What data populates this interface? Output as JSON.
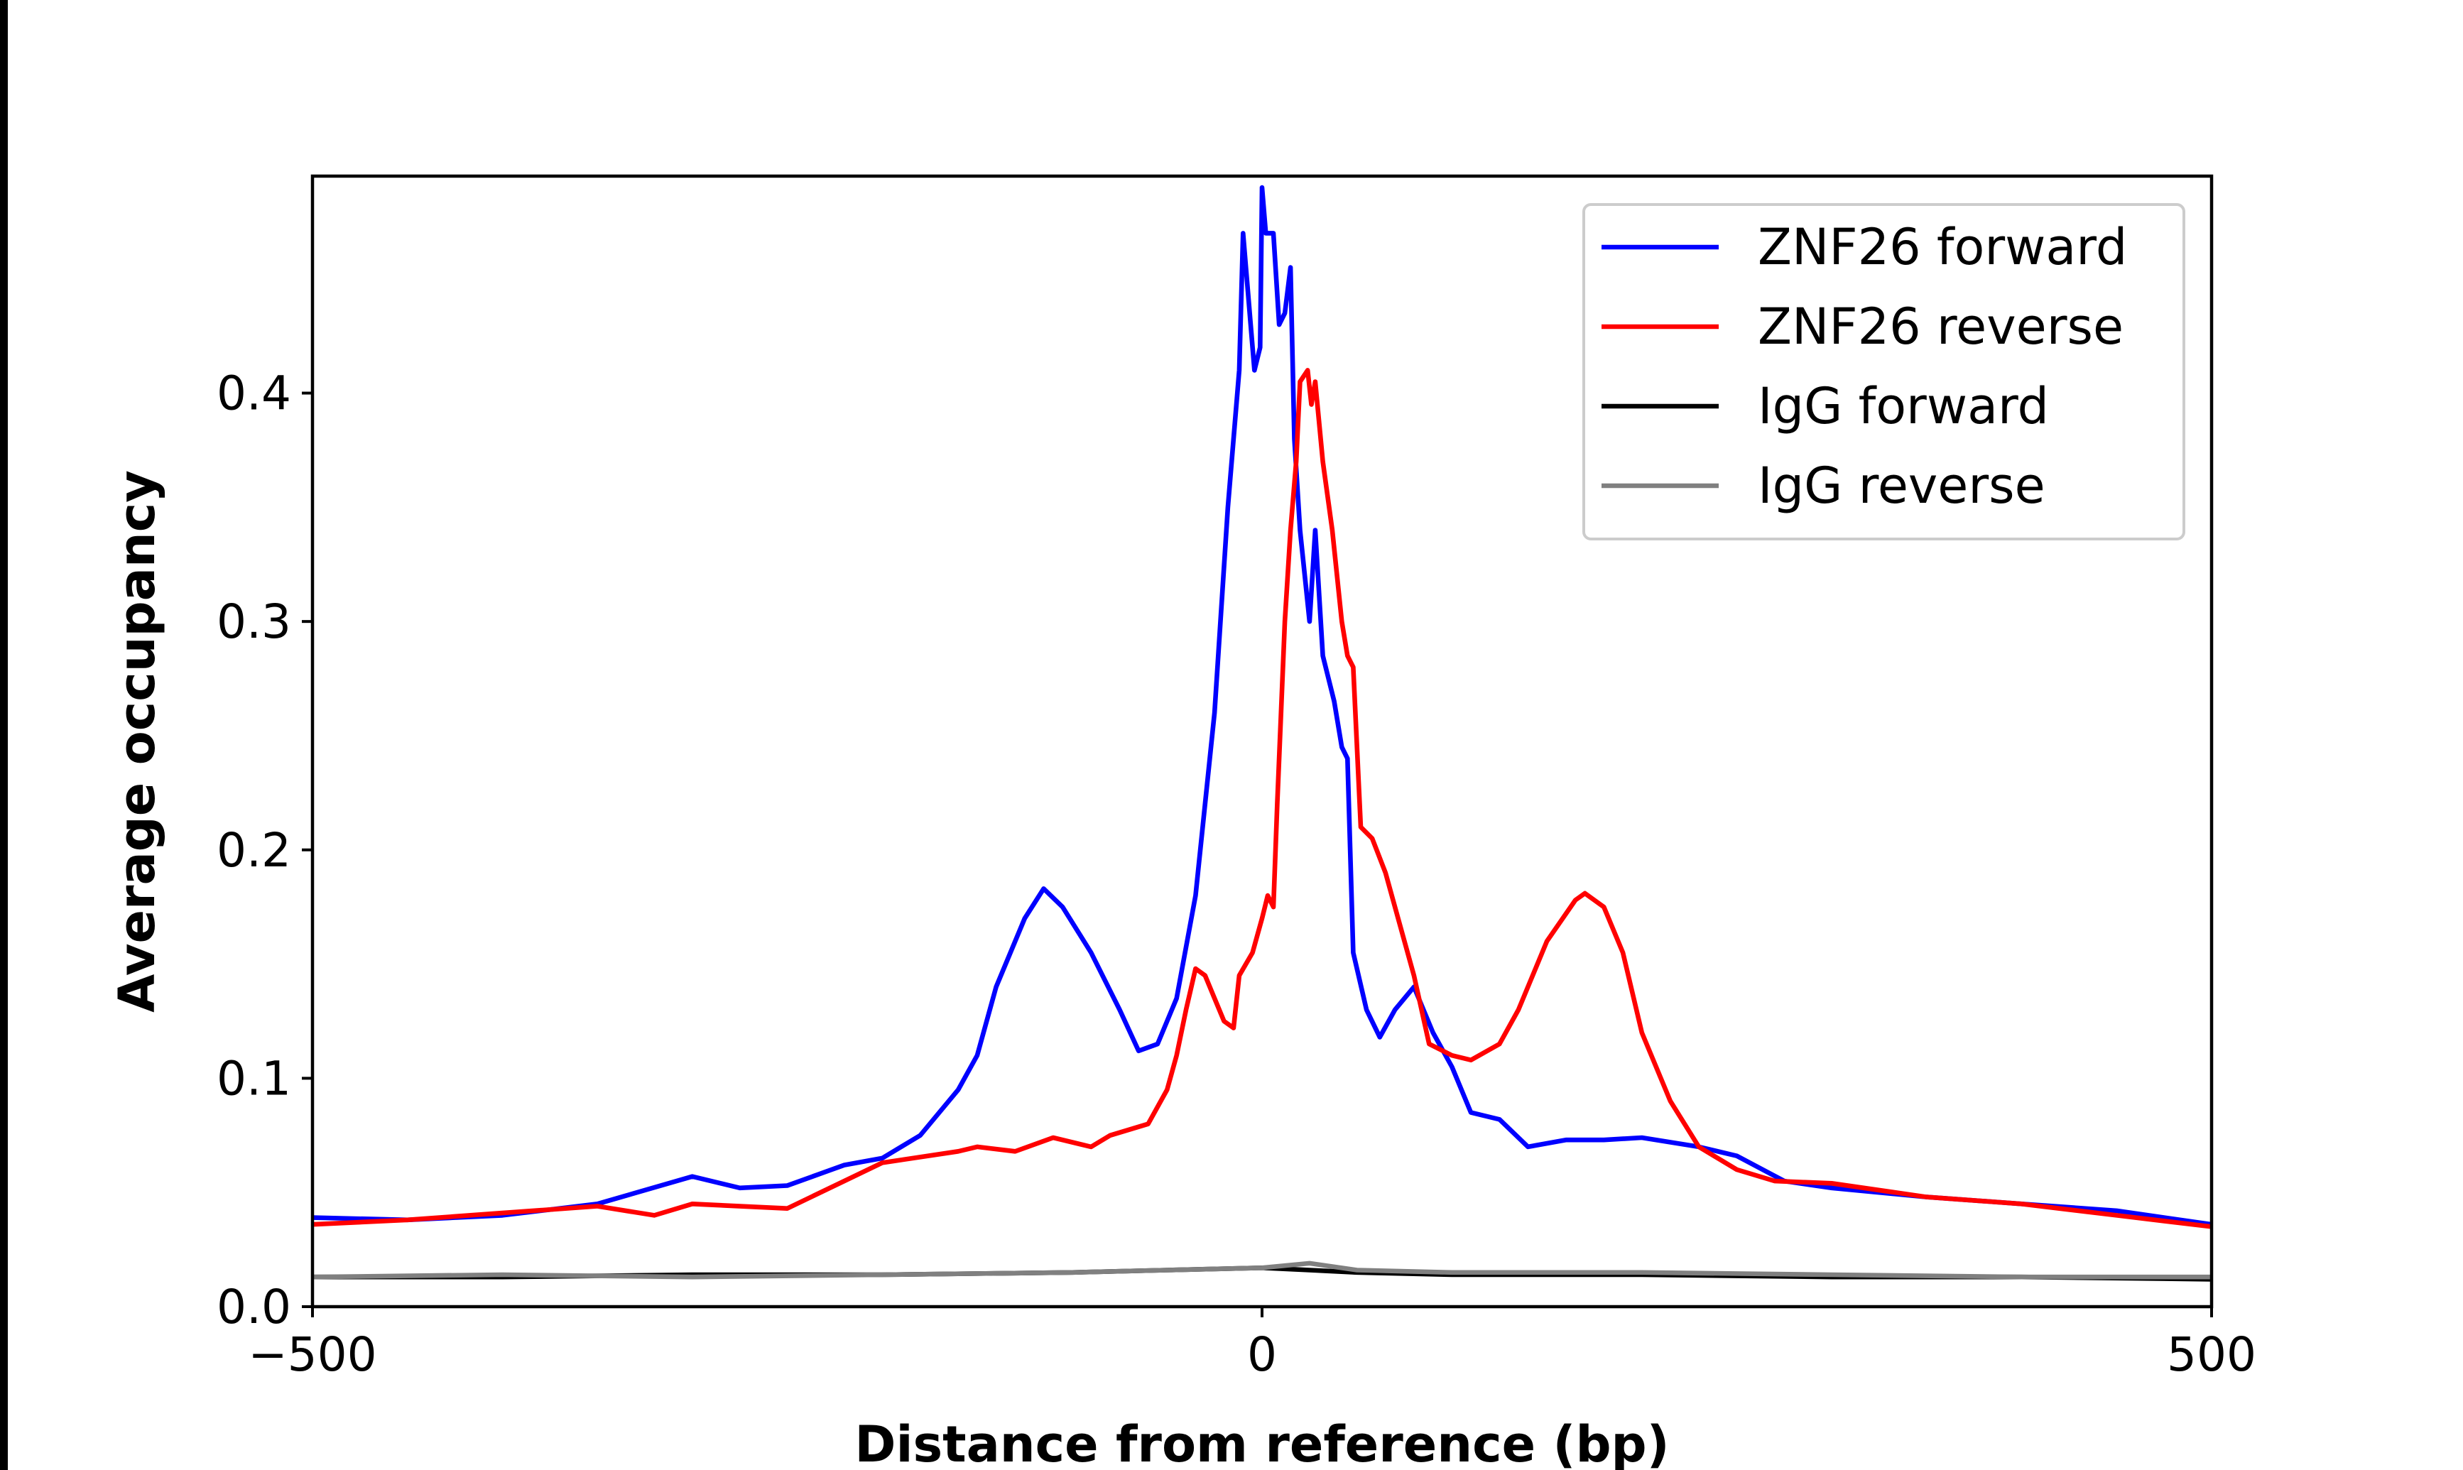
{
  "chart_data": {
    "type": "line",
    "title": "",
    "xlabel": "Distance from reference (bp)",
    "ylabel": "Average occupancy",
    "xlim": [
      -500,
      500
    ],
    "ylim": [
      0,
      0.495
    ],
    "xticks": [
      -500,
      0,
      500
    ],
    "xtick_labels": [
      "−500",
      "0",
      "500"
    ],
    "yticks": [
      0.0,
      0.1,
      0.2,
      0.3,
      0.4
    ],
    "ytick_labels": [
      "0.0",
      "0.1",
      "0.2",
      "0.3",
      "0.4"
    ],
    "grid": false,
    "legend_position": "top-right",
    "series": [
      {
        "name": "ZNF26 forward",
        "color": "#0000ff",
        "x": [
          -500,
          -450,
          -400,
          -350,
          -300,
          -275,
          -250,
          -220,
          -200,
          -180,
          -160,
          -150,
          -140,
          -125,
          -115,
          -105,
          -90,
          -75,
          -65,
          -55,
          -45,
          -35,
          -25,
          -18,
          -12,
          -10,
          -7,
          -4,
          -1,
          0,
          2,
          6,
          9,
          12,
          15,
          17,
          20,
          25,
          28,
          32,
          38,
          42,
          45,
          48,
          55,
          62,
          70,
          80,
          90,
          100,
          110,
          125,
          140,
          160,
          180,
          200,
          230,
          250,
          275,
          300,
          350,
          400,
          450,
          500
        ],
        "y": [
          0.039,
          0.038,
          0.04,
          0.045,
          0.057,
          0.052,
          0.053,
          0.062,
          0.065,
          0.075,
          0.095,
          0.11,
          0.14,
          0.17,
          0.183,
          0.175,
          0.155,
          0.13,
          0.112,
          0.115,
          0.135,
          0.18,
          0.26,
          0.35,
          0.41,
          0.47,
          0.44,
          0.41,
          0.42,
          0.49,
          0.47,
          0.47,
          0.43,
          0.435,
          0.455,
          0.38,
          0.34,
          0.3,
          0.34,
          0.285,
          0.265,
          0.245,
          0.24,
          0.155,
          0.13,
          0.118,
          0.13,
          0.14,
          0.12,
          0.105,
          0.085,
          0.082,
          0.07,
          0.073,
          0.073,
          0.074,
          0.07,
          0.066,
          0.055,
          0.052,
          0.048,
          0.045,
          0.042,
          0.036
        ]
      },
      {
        "name": "ZNF26 reverse",
        "color": "#ff0000",
        "x": [
          -500,
          -450,
          -400,
          -350,
          -320,
          -300,
          -250,
          -220,
          -200,
          -160,
          -150,
          -130,
          -110,
          -90,
          -80,
          -60,
          -50,
          -45,
          -40,
          -35,
          -30,
          -25,
          -20,
          -15,
          -12,
          -5,
          0,
          3,
          6,
          8,
          12,
          15,
          18,
          20,
          24,
          26,
          28,
          32,
          37,
          42,
          45,
          48,
          52,
          58,
          65,
          75,
          80,
          88,
          100,
          110,
          125,
          135,
          150,
          165,
          170,
          180,
          190,
          200,
          215,
          230,
          250,
          270,
          300,
          350,
          400,
          450,
          500
        ],
        "y": [
          0.036,
          0.038,
          0.041,
          0.044,
          0.04,
          0.045,
          0.043,
          0.055,
          0.063,
          0.068,
          0.07,
          0.068,
          0.074,
          0.07,
          0.075,
          0.08,
          0.095,
          0.11,
          0.13,
          0.148,
          0.145,
          0.135,
          0.125,
          0.122,
          0.145,
          0.155,
          0.17,
          0.18,
          0.175,
          0.22,
          0.3,
          0.34,
          0.37,
          0.405,
          0.41,
          0.395,
          0.405,
          0.37,
          0.34,
          0.3,
          0.285,
          0.28,
          0.21,
          0.205,
          0.19,
          0.16,
          0.145,
          0.115,
          0.11,
          0.108,
          0.115,
          0.13,
          0.16,
          0.178,
          0.181,
          0.175,
          0.155,
          0.12,
          0.09,
          0.07,
          0.06,
          0.055,
          0.054,
          0.048,
          0.045,
          0.04,
          0.035
        ]
      },
      {
        "name": "IgG forward",
        "color": "#000000",
        "x": [
          -500,
          -400,
          -300,
          -200,
          -100,
          -50,
          0,
          25,
          50,
          100,
          200,
          300,
          400,
          500
        ],
        "y": [
          0.013,
          0.013,
          0.014,
          0.014,
          0.015,
          0.016,
          0.017,
          0.016,
          0.015,
          0.014,
          0.014,
          0.013,
          0.013,
          0.012
        ]
      },
      {
        "name": "IgG reverse",
        "color": "#808080",
        "x": [
          -500,
          -400,
          -300,
          -200,
          -100,
          -50,
          0,
          25,
          50,
          100,
          200,
          300,
          400,
          500
        ],
        "y": [
          0.013,
          0.014,
          0.013,
          0.014,
          0.015,
          0.016,
          0.017,
          0.019,
          0.016,
          0.015,
          0.015,
          0.014,
          0.013,
          0.013
        ]
      }
    ]
  }
}
